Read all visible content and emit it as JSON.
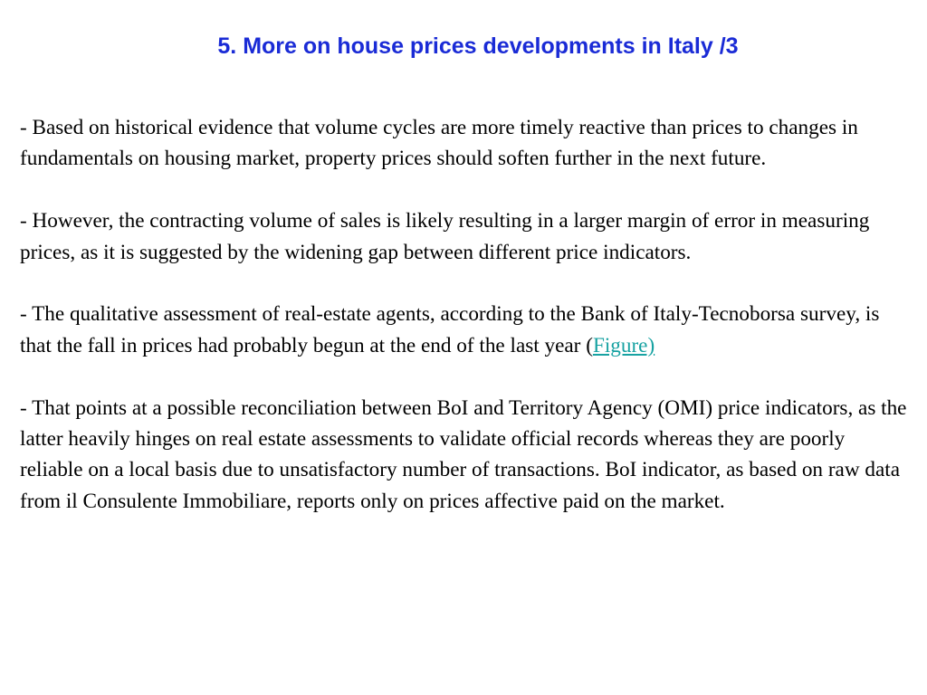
{
  "slide": {
    "title": "5. More on house prices developments in Italy /3",
    "title_color": "#1a2bd6",
    "link_color": "#17a2a2",
    "paragraphs": [
      {
        "text": "- Based on historical evidence that volume cycles are more timely reactive than prices to changes in fundamentals on housing market, property prices should soften further in the next future."
      },
      {
        "text": " - However, the contracting volume of sales is likely resulting in a larger margin of error in measuring prices, as it is suggested by the widening gap between different price indicators."
      },
      {
        "text_before_link": "- The qualitative assessment of real-estate agents, according to the Bank of Italy-Tecnoborsa survey, is that the fall in prices had probably begun at the end of the last year (",
        "link_text": "Figure)"
      },
      {
        "text": "- That points at a possible reconciliation between BoI and Territory Agency (OMI) price indicators, as the latter heavily hinges on real estate assessments to validate official records whereas they are poorly reliable on a local basis due to unsatisfactory number of transactions. BoI indicator, as based on raw data from il Consulente Immobiliare, reports only on prices affective paid on the market."
      }
    ]
  }
}
